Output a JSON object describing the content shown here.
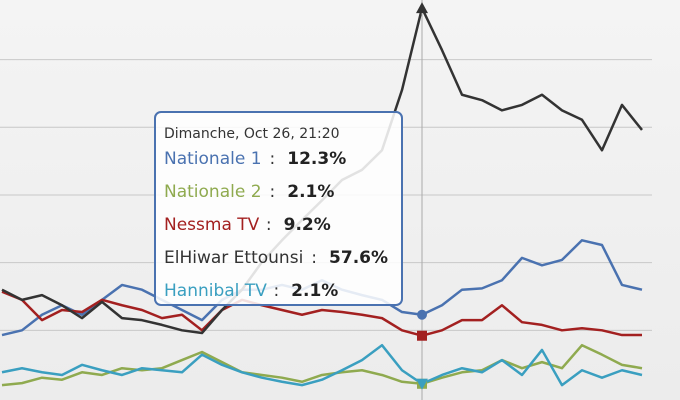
{
  "chart_data": {
    "type": "line",
    "categories": [
      null,
      null,
      null,
      null,
      null,
      null,
      null,
      null,
      null,
      null,
      null,
      null,
      null,
      null,
      null,
      null,
      null,
      null,
      null,
      null,
      null,
      "Dimanche, Oct 26, 21:20",
      null,
      null,
      null,
      null,
      null,
      null,
      null,
      null,
      null,
      null,
      null
    ],
    "series": [
      {
        "name": "Nationale 1",
        "color": "#4a72b0",
        "values": [
          9.3,
          10.0,
          12.3,
          13.7,
          12.3,
          14.5,
          16.7,
          16.0,
          14.5,
          13.0,
          11.5,
          14.5,
          16.0,
          16.0,
          16.7,
          16.0,
          17.4,
          16.0,
          15.2,
          14.5,
          12.7,
          12.3,
          13.7,
          16.0,
          16.2,
          17.4,
          20.7,
          19.6,
          20.4,
          23.3,
          22.6,
          16.7,
          16.0
        ]
      },
      {
        "name": "Nationale 2",
        "color": "#8faa4f",
        "values": [
          1.9,
          2.2,
          3.0,
          2.7,
          3.8,
          3.4,
          4.4,
          4.1,
          4.4,
          5.6,
          6.8,
          5.3,
          3.8,
          3.4,
          3.0,
          2.4,
          3.4,
          3.8,
          4.1,
          3.4,
          2.4,
          2.1,
          3.0,
          3.8,
          4.1,
          5.6,
          4.4,
          5.3,
          4.4,
          7.8,
          6.4,
          4.9,
          4.4
        ]
      },
      {
        "name": "Nessma TV",
        "color": "#a32020",
        "values": [
          15.7,
          14.5,
          11.5,
          13.0,
          12.7,
          14.5,
          13.7,
          13.0,
          11.8,
          12.3,
          10.0,
          13.0,
          14.5,
          13.7,
          13.0,
          12.3,
          13.0,
          12.7,
          12.3,
          11.8,
          10.0,
          9.2,
          10.0,
          11.5,
          11.5,
          13.7,
          11.2,
          10.8,
          10.0,
          10.3,
          10.0,
          9.3,
          9.3
        ]
      },
      {
        "name": "ElHiwar Ettounsi",
        "color": "#333333",
        "values": [
          16.0,
          14.5,
          15.2,
          13.7,
          11.8,
          14.2,
          11.8,
          11.5,
          10.8,
          10.0,
          9.6,
          13.0,
          16.0,
          20.1,
          23.3,
          26.3,
          29.2,
          32.2,
          33.7,
          36.6,
          45.5,
          57.6,
          51.4,
          44.8,
          44.0,
          42.5,
          43.3,
          44.8,
          42.5,
          41.1,
          36.6,
          43.3,
          39.6
        ]
      },
      {
        "name": "Hannibal TV",
        "color": "#3a9fc0",
        "values": [
          3.8,
          4.4,
          3.8,
          3.4,
          4.9,
          4.1,
          3.4,
          4.4,
          4.1,
          3.8,
          6.4,
          4.9,
          3.8,
          3.0,
          2.4,
          1.9,
          2.7,
          4.1,
          5.6,
          7.8,
          4.1,
          2.1,
          3.4,
          4.4,
          3.8,
          5.6,
          3.4,
          7.1,
          1.9,
          4.1,
          3.0,
          4.1,
          3.4
        ]
      }
    ],
    "ylim": [
      0,
      58.8
    ],
    "yticks": [
      10,
      20,
      30,
      40,
      50
    ],
    "grid": true,
    "tooltip": {
      "index": 21,
      "separator": ":",
      "labels": [
        "12.3%",
        "2.1%",
        "9.2%",
        "57.6%",
        "2.1%"
      ]
    }
  }
}
